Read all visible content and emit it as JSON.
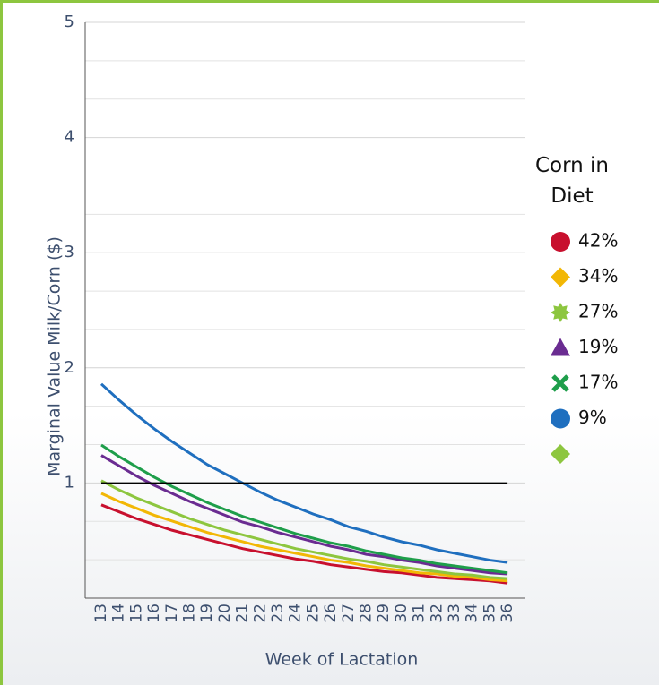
{
  "chart_data": {
    "type": "line",
    "y_label": "Marginal Value Milk/Corn ($)",
    "x_label": "Week of Lactation",
    "legend_title": "Corn in Diet",
    "legend": "right",
    "grid": true,
    "minor_grid_divisions": 3,
    "ylim": [
      0,
      5
    ],
    "yticks": [
      1,
      2,
      3,
      4,
      5
    ],
    "categories": [
      "13",
      "14",
      "15",
      "16",
      "17",
      "18",
      "19",
      "20",
      "21",
      "22",
      "23",
      "24",
      "25",
      "26",
      "27",
      "28",
      "29",
      "30",
      "31",
      "32",
      "33",
      "34",
      "35",
      "36"
    ],
    "series": [
      {
        "name": "42%",
        "color": "#c8102e",
        "marker": "circle",
        "values": [
          0.81,
          0.75,
          0.69,
          0.64,
          0.59,
          0.55,
          0.51,
          0.47,
          0.43,
          0.4,
          0.37,
          0.34,
          0.32,
          0.29,
          0.27,
          0.25,
          0.23,
          0.22,
          0.2,
          0.18,
          0.17,
          0.16,
          0.15,
          0.13
        ]
      },
      {
        "name": "34%",
        "color": "#f2b705",
        "marker": "diamond",
        "values": [
          0.91,
          0.84,
          0.78,
          0.72,
          0.67,
          0.62,
          0.57,
          0.53,
          0.49,
          0.45,
          0.42,
          0.39,
          0.36,
          0.33,
          0.31,
          0.28,
          0.26,
          0.24,
          0.22,
          0.21,
          0.19,
          0.18,
          0.16,
          0.15
        ]
      },
      {
        "name": "27%",
        "color": "#8dc63f",
        "marker": "star",
        "values": [
          1.02,
          0.94,
          0.87,
          0.81,
          0.75,
          0.69,
          0.64,
          0.59,
          0.55,
          0.51,
          0.47,
          0.43,
          0.4,
          0.37,
          0.34,
          0.32,
          0.29,
          0.27,
          0.25,
          0.23,
          0.21,
          0.2,
          0.18,
          0.17
        ]
      },
      {
        "name": "19%",
        "color": "#6a2c91",
        "marker": "triangle",
        "values": [
          1.24,
          1.15,
          1.06,
          0.98,
          0.91,
          0.84,
          0.78,
          0.72,
          0.66,
          0.62,
          0.57,
          0.53,
          0.49,
          0.45,
          0.42,
          0.38,
          0.36,
          0.33,
          0.31,
          0.28,
          0.26,
          0.24,
          0.22,
          0.21
        ]
      },
      {
        "name": "17%",
        "color": "#1e9e4a",
        "marker": "x",
        "values": [
          1.33,
          1.23,
          1.14,
          1.05,
          0.97,
          0.9,
          0.83,
          0.77,
          0.71,
          0.66,
          0.61,
          0.56,
          0.52,
          0.48,
          0.45,
          0.41,
          0.38,
          0.35,
          0.33,
          0.3,
          0.28,
          0.26,
          0.24,
          0.22
        ]
      },
      {
        "name": "9%",
        "color": "#1f6fbf",
        "marker": "circle",
        "values": [
          1.86,
          1.72,
          1.59,
          1.47,
          1.36,
          1.26,
          1.16,
          1.08,
          1.0,
          0.92,
          0.85,
          0.79,
          0.73,
          0.68,
          0.62,
          0.58,
          0.53,
          0.49,
          0.46,
          0.42,
          0.39,
          0.36,
          0.33,
          0.31
        ]
      },
      {
        "color": "#000000",
        "marker_color": "#8dc63f",
        "marker": "diamond",
        "values": [
          1,
          1,
          1,
          1,
          1,
          1,
          1,
          1,
          1,
          1,
          1,
          1,
          1,
          1,
          1,
          1,
          1,
          1,
          1,
          1,
          1,
          1,
          1,
          1
        ]
      }
    ]
  }
}
